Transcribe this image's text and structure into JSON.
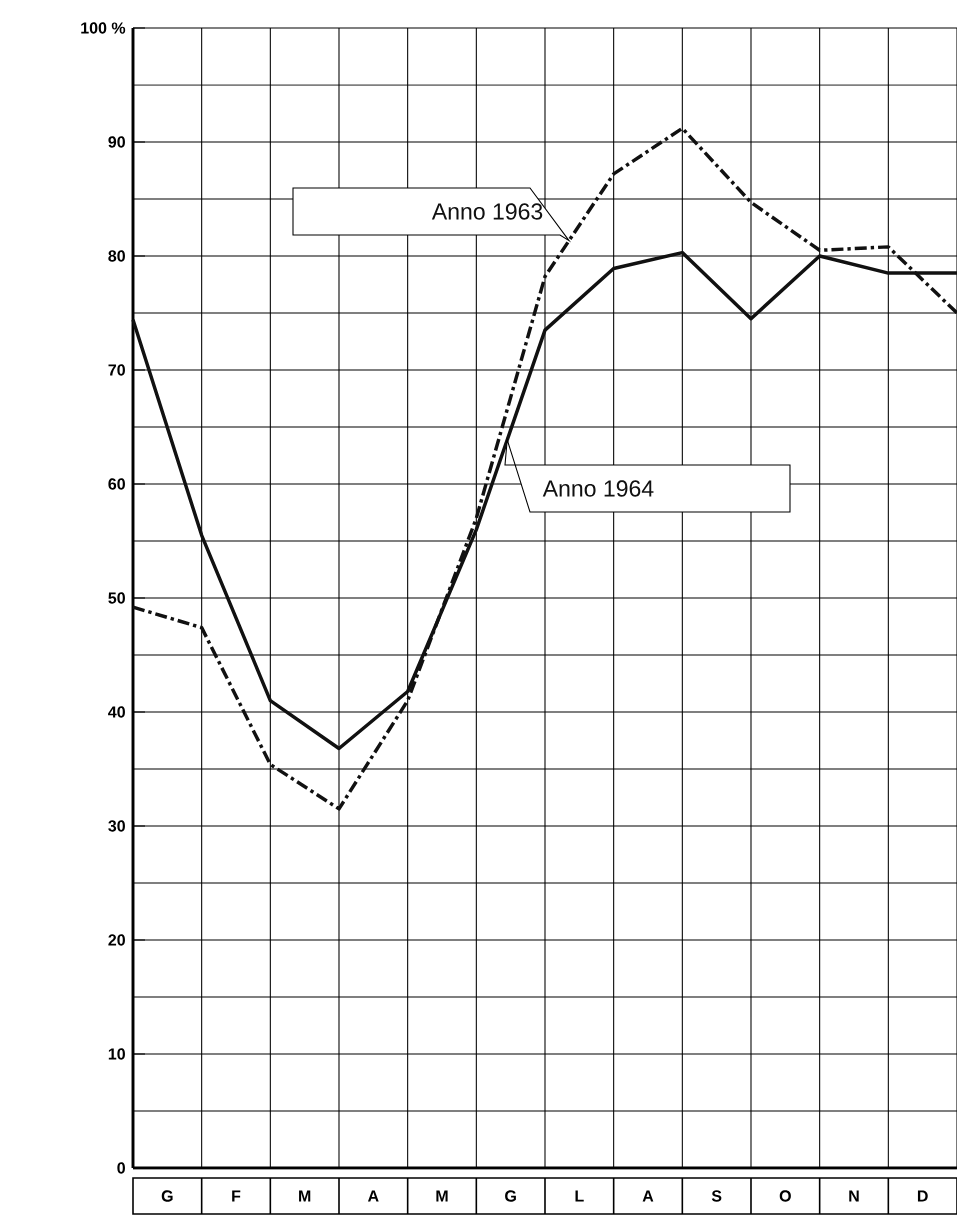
{
  "chart_data": {
    "type": "line",
    "categories": [
      null,
      null,
      null,
      null,
      null,
      null,
      null,
      null,
      null,
      null,
      null,
      null,
      null
    ],
    "ylim": [
      0,
      100
    ],
    "yticks": [
      0,
      {
        "value": 5,
        "label": null
      },
      10,
      {
        "value": 15,
        "label": null
      },
      20,
      {
        "value": 25,
        "label": null
      },
      30,
      {
        "value": 35,
        "label": null
      },
      40,
      {
        "value": 45,
        "label": null
      },
      50,
      {
        "value": 55,
        "label": null
      },
      60,
      {
        "value": 65,
        "label": null
      },
      70,
      {
        "value": 75,
        "label": null
      },
      80,
      {
        "value": 85,
        "label": null
      },
      90,
      {
        "value": 95,
        "label": null
      },
      {
        "value": 100,
        "label": "100 %"
      }
    ],
    "grid": true,
    "annotations": [
      "G",
      "F",
      "M",
      "A",
      "M",
      "G",
      "L",
      "A",
      "S",
      "O",
      "N",
      "D"
    ],
    "series": [
      {
        "name": "Anno 1963",
        "color": "#111111",
        "line_style": "dashdot",
        "values": [
          49.2,
          47.4,
          35.4,
          31.5,
          41.0,
          57.0,
          78.2,
          87.2,
          91.2,
          84.7,
          80.5,
          80.8,
          75.0
        ]
      },
      {
        "name": "Anno 1964",
        "color": "#111111",
        "line_style": "solid",
        "values": [
          74.4,
          55.5,
          41.0,
          36.8,
          41.8,
          56.0,
          73.5,
          78.9,
          80.3,
          74.5,
          80.0,
          78.5,
          78.5
        ]
      }
    ]
  }
}
